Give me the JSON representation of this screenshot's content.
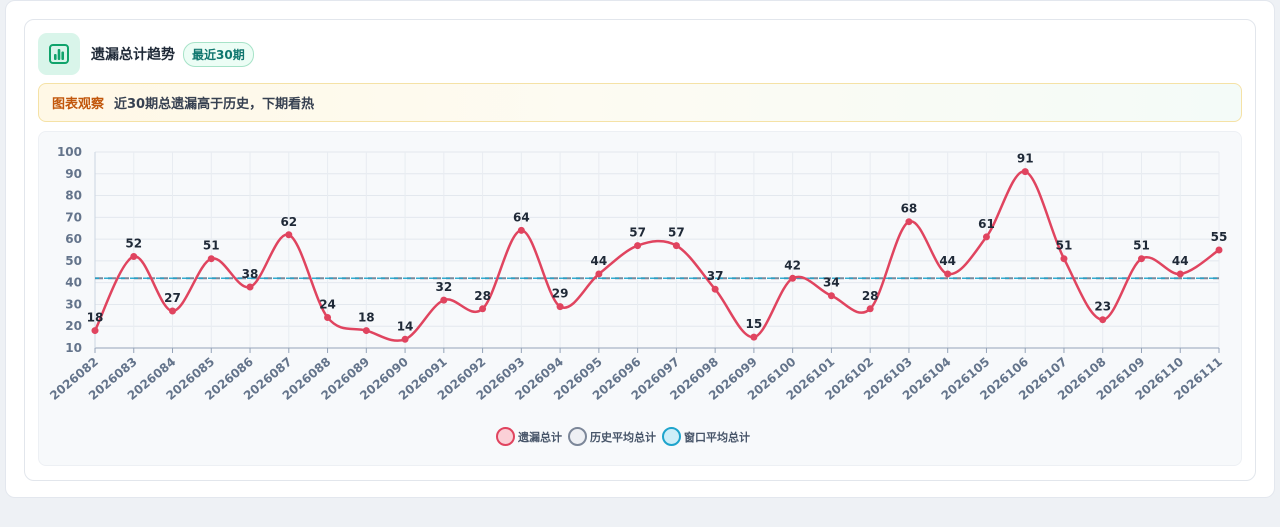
{
  "header": {
    "title": "遗漏总计趋势",
    "badge": "最近30期"
  },
  "note": {
    "tag": "图表观察",
    "text": "近30期总遗漏高于历史，下期看热"
  },
  "colors": {
    "main_line": "#e0445f",
    "history_avg": "#7c8799",
    "window_avg": "#1ea4cc"
  },
  "legend": [
    {
      "name": "遗漏总计",
      "fill": "#fbd0d7",
      "stroke": "#e0445f"
    },
    {
      "name": "历史平均总计",
      "fill": "#eef0f4",
      "stroke": "#7c8799"
    },
    {
      "name": "窗口平均总计",
      "fill": "#cdeef8",
      "stroke": "#1ea4cc"
    }
  ],
  "chart_data": {
    "type": "line",
    "categories": [
      "2026082",
      "2026083",
      "2026084",
      "2026085",
      "2026086",
      "2026087",
      "2026088",
      "2026089",
      "2026090",
      "2026091",
      "2026092",
      "2026093",
      "2026094",
      "2026095",
      "2026096",
      "2026097",
      "2026098",
      "2026099",
      "2026100",
      "2026101",
      "2026102",
      "2026103",
      "2026104",
      "2026105",
      "2026106",
      "2026107",
      "2026108",
      "2026109",
      "2026110",
      "2026111"
    ],
    "series": [
      {
        "name": "遗漏总计",
        "values": [
          18,
          52,
          27,
          51,
          38,
          62,
          24,
          18,
          14,
          32,
          28,
          64,
          29,
          44,
          57,
          57,
          37,
          15,
          42,
          34,
          28,
          68,
          44,
          61,
          91,
          51,
          23,
          51,
          44,
          55
        ]
      },
      {
        "name": "历史平均总计",
        "values": [
          42,
          42,
          42,
          42,
          42,
          42,
          42,
          42,
          42,
          42,
          42,
          42,
          42,
          42,
          42,
          42,
          42,
          42,
          42,
          42,
          42,
          42,
          42,
          42,
          42,
          42,
          42,
          42,
          42,
          42
        ]
      },
      {
        "name": "窗口平均总计",
        "values": [
          42,
          42,
          42,
          42,
          42,
          42,
          42,
          42,
          42,
          42,
          42,
          42,
          42,
          42,
          42,
          42,
          42,
          42,
          42,
          42,
          42,
          42,
          42,
          42,
          42,
          42,
          42,
          42,
          42,
          42
        ]
      }
    ],
    "y_ticks": [
      10,
      20,
      30,
      40,
      50,
      60,
      70,
      80,
      90,
      100
    ],
    "ylim": [
      10,
      100
    ],
    "grid": true,
    "legend_position": "bottom-center"
  }
}
